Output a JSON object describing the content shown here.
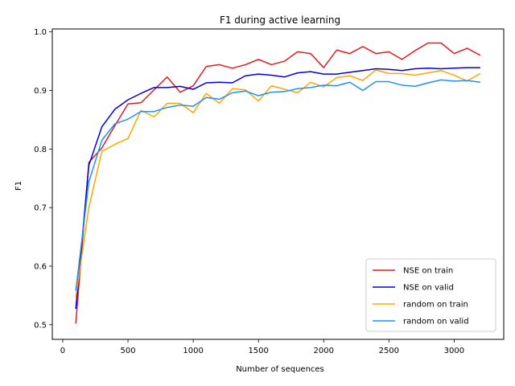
{
  "chart_data": {
    "type": "line",
    "title": "F1 during active learning",
    "xlabel": "Number of sequences",
    "ylabel": "F1",
    "xlim": [
      -80,
      3380
    ],
    "ylim": [
      0.475,
      1.005
    ],
    "xticks": [
      0,
      500,
      1000,
      1500,
      2000,
      2500,
      3000
    ],
    "yticks": [
      0.5,
      0.6,
      0.7,
      0.8,
      0.9,
      1.0
    ],
    "ytick_labels": [
      "0.5",
      "0.6",
      "0.7",
      "0.8",
      "0.9",
      "1.0"
    ],
    "grid": false,
    "legend_position": "lower right",
    "x": [
      100,
      200,
      300,
      400,
      500,
      600,
      700,
      800,
      900,
      1000,
      1100,
      1200,
      1300,
      1400,
      1500,
      1600,
      1700,
      1800,
      1900,
      2000,
      2100,
      2200,
      2300,
      2400,
      2500,
      2600,
      2700,
      2800,
      2900,
      3000,
      3100,
      3200
    ],
    "series": [
      {
        "name": "NSE on train",
        "color": "#e41a1c",
        "values": [
          0.502,
          0.777,
          0.802,
          0.84,
          0.877,
          0.879,
          0.901,
          0.923,
          0.897,
          0.908,
          0.941,
          0.944,
          0.938,
          0.944,
          0.953,
          0.944,
          0.95,
          0.966,
          0.963,
          0.939,
          0.969,
          0.963,
          0.975,
          0.963,
          0.966,
          0.953,
          0.968,
          0.981,
          0.981,
          0.963,
          0.972,
          0.96
        ]
      },
      {
        "name": "NSE on valid",
        "color": "#0000e0",
        "values": [
          0.527,
          0.772,
          0.838,
          0.868,
          0.884,
          0.895,
          0.905,
          0.905,
          0.907,
          0.902,
          0.913,
          0.914,
          0.913,
          0.925,
          0.928,
          0.926,
          0.923,
          0.93,
          0.932,
          0.928,
          0.928,
          0.931,
          0.934,
          0.937,
          0.936,
          0.934,
          0.937,
          0.938,
          0.937,
          0.938,
          0.939,
          0.939
        ]
      },
      {
        "name": "random on train",
        "color": "#ffa500",
        "values": [
          0.547,
          0.7,
          0.796,
          0.808,
          0.818,
          0.866,
          0.855,
          0.878,
          0.878,
          0.862,
          0.895,
          0.878,
          0.903,
          0.901,
          0.882,
          0.908,
          0.902,
          0.896,
          0.914,
          0.906,
          0.922,
          0.925,
          0.917,
          0.935,
          0.929,
          0.929,
          0.926,
          0.93,
          0.934,
          0.926,
          0.916,
          0.929
        ]
      },
      {
        "name": "random on valid",
        "color": "#1e90ff",
        "values": [
          0.558,
          0.744,
          0.815,
          0.843,
          0.851,
          0.864,
          0.864,
          0.871,
          0.875,
          0.873,
          0.888,
          0.885,
          0.896,
          0.899,
          0.891,
          0.897,
          0.898,
          0.903,
          0.905,
          0.909,
          0.908,
          0.914,
          0.9,
          0.915,
          0.915,
          0.909,
          0.907,
          0.913,
          0.918,
          0.916,
          0.917,
          0.914
        ]
      }
    ]
  }
}
